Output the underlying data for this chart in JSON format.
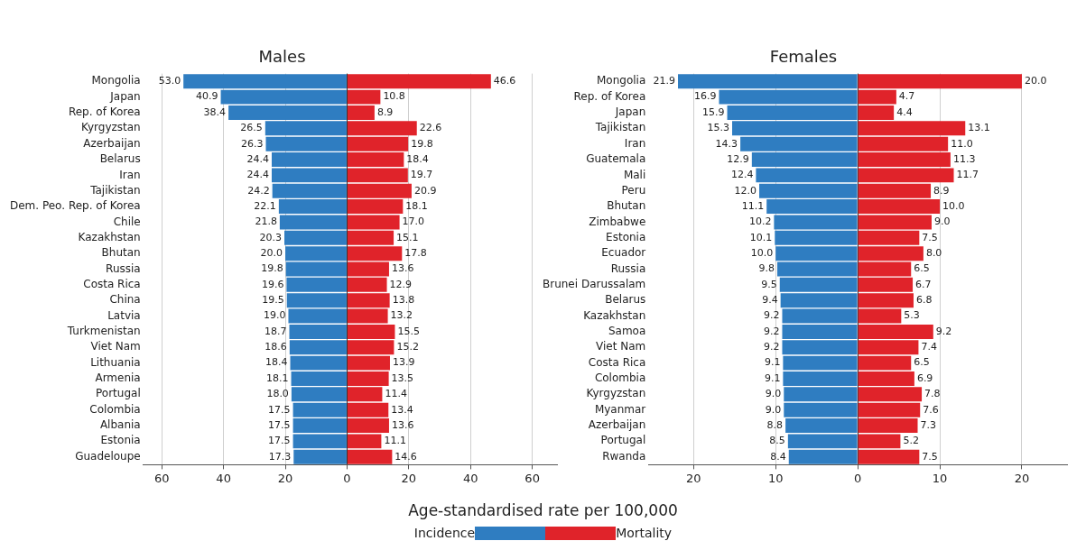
{
  "chart_data": [
    {
      "type": "bar",
      "orientation": "horizontal",
      "title": "Males",
      "xlabel": "Age-standardised rate per 100,000",
      "legend": "bottom",
      "grid": "x",
      "data_labels": true,
      "categories": [
        "Mongolia",
        "Japan",
        "Rep. of Korea",
        "Kyrgyzstan",
        "Azerbaijan",
        "Belarus",
        "Iran",
        "Tajikistan",
        "Dem. Peo. Rep. of Korea",
        "Chile",
        "Kazakhstan",
        "Bhutan",
        "Russia",
        "Costa Rica",
        "China",
        "Latvia",
        "Turkmenistan",
        "Viet Nam",
        "Lithuania",
        "Armenia",
        "Portugal",
        "Colombia",
        "Albania",
        "Estonia",
        "Guadeloupe"
      ],
      "xlim": [
        -66,
        68
      ],
      "xticks": [
        {
          "value": -60,
          "label": "60"
        },
        {
          "value": -40,
          "label": "40"
        },
        {
          "value": -20,
          "label": "20"
        },
        0,
        20,
        40,
        60
      ],
      "series": [
        {
          "name": "Incidence",
          "color": "#2f7dc1",
          "values": [
            53.0,
            40.9,
            38.4,
            26.5,
            26.3,
            24.4,
            24.4,
            24.2,
            22.1,
            21.8,
            20.3,
            20.0,
            19.8,
            19.6,
            19.5,
            19.0,
            18.7,
            18.6,
            18.4,
            18.1,
            18.0,
            17.5,
            17.5,
            17.5,
            17.3
          ],
          "base": [
            -53.0,
            -40.9,
            -38.4,
            -26.5,
            -26.3,
            -24.4,
            -24.4,
            -24.2,
            -22.1,
            -21.8,
            -20.3,
            -20.0,
            -19.8,
            -19.6,
            -19.5,
            -19.0,
            -18.7,
            -18.6,
            -18.4,
            -18.1,
            -18.0,
            -17.5,
            -17.5,
            -17.5,
            -17.3
          ],
          "value_labels": [
            "53.0",
            "40.9",
            "38.4",
            "26.5",
            "26.3",
            "24.4",
            "24.4",
            "24.2",
            "22.1",
            "21.8",
            "20.3",
            "20.0",
            "19.8",
            "19.6",
            "19.5",
            "19.0",
            "18.7",
            "18.6",
            "18.4",
            "18.1",
            "18.0",
            "17.5",
            "17.5",
            "17.5",
            "17.3"
          ]
        },
        {
          "name": "Mortality",
          "color": "#e0232a",
          "values": [
            46.6,
            10.8,
            8.9,
            22.6,
            19.8,
            18.4,
            19.7,
            20.9,
            18.1,
            17.0,
            15.1,
            17.8,
            13.6,
            12.9,
            13.8,
            13.2,
            15.5,
            15.2,
            13.9,
            13.5,
            11.4,
            13.4,
            13.6,
            11.1,
            14.6
          ],
          "value_labels": [
            "46.6",
            "10.8",
            "8.9",
            "22.6",
            "19.8",
            "18.4",
            "19.7",
            "20.9",
            "18.1",
            "17.0",
            "15.1",
            "17.8",
            "13.6",
            "12.9",
            "13.8",
            "13.2",
            "15.5",
            "15.2",
            "13.9",
            "13.5",
            "11.4",
            "13.4",
            "13.6",
            "11.1",
            "14.6"
          ]
        }
      ]
    },
    {
      "type": "bar",
      "orientation": "horizontal",
      "title": "Females",
      "grid": "x",
      "data_labels": true,
      "categories": [
        "Mongolia",
        "Rep. of Korea",
        "Japan",
        "Tajikistan",
        "Iran",
        "Guatemala",
        "Mali",
        "Peru",
        "Bhutan",
        "Zimbabwe",
        "Estonia",
        "Ecuador",
        "Russia",
        "Brunei Darussalam",
        "Belarus",
        "Kazakhstan",
        "Samoa",
        "Viet Nam",
        "Costa Rica",
        "Colombia",
        "Kyrgyzstan",
        "Myanmar",
        "Azerbaijan",
        "Portugal",
        "Rwanda"
      ],
      "xlim": [
        -25.5,
        25.5
      ],
      "xticks": [
        {
          "value": -20,
          "label": "20"
        },
        {
          "value": -10,
          "label": "10"
        },
        0,
        10,
        20
      ],
      "series": [
        {
          "color": "#2f7dc1",
          "values": [
            21.9,
            16.9,
            15.9,
            15.3,
            14.3,
            12.9,
            12.4,
            12.0,
            11.1,
            10.2,
            10.1,
            10.0,
            9.8,
            9.5,
            9.4,
            9.2,
            9.2,
            9.2,
            9.1,
            9.1,
            9.0,
            9.0,
            8.8,
            8.5,
            8.4
          ],
          "base": [
            -21.9,
            -16.9,
            -15.9,
            -15.3,
            -14.3,
            -12.9,
            -12.4,
            -12.0,
            -11.1,
            -10.2,
            -10.1,
            -10.0,
            -9.8,
            -9.5,
            -9.4,
            -9.2,
            -9.2,
            -9.2,
            -9.1,
            -9.1,
            -9.0,
            -9.0,
            -8.8,
            -8.5,
            -8.4
          ],
          "value_labels": [
            "21.9",
            "16.9",
            "15.9",
            "15.3",
            "14.3",
            "12.9",
            "12.4",
            "12.0",
            "11.1",
            "10.2",
            "10.1",
            "10.0",
            "9.8",
            "9.5",
            "9.4",
            "9.2",
            "9.2",
            "9.2",
            "9.1",
            "9.1",
            "9.0",
            "9.0",
            "8.8",
            "8.5",
            "8.4"
          ]
        },
        {
          "color": "#e0232a",
          "values": [
            20.0,
            4.7,
            4.4,
            13.1,
            11.0,
            11.3,
            11.7,
            8.9,
            10.0,
            9.0,
            7.5,
            8.0,
            6.5,
            6.7,
            6.8,
            5.3,
            9.2,
            7.4,
            6.5,
            6.9,
            7.8,
            7.6,
            7.3,
            5.2,
            7.5
          ],
          "value_labels": [
            "20.0",
            "4.7",
            "4.4",
            "13.1",
            "11.0",
            "11.3",
            "11.7",
            "8.9",
            "10.0",
            "9.0",
            "7.5",
            "8.0",
            "6.5",
            "6.7",
            "6.8",
            "5.3",
            "9.2",
            "7.4",
            "6.5",
            "6.9",
            "7.8",
            "7.6",
            "7.3",
            "5.2",
            "7.5"
          ]
        }
      ]
    }
  ]
}
